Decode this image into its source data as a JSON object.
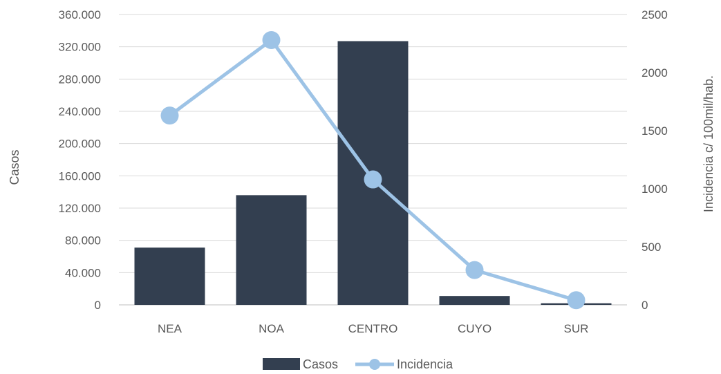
{
  "chart_data": {
    "type": "bar",
    "categories": [
      "NEA",
      "NOA",
      "CENTRO",
      "CUYO",
      "SUR"
    ],
    "series": [
      {
        "name": "Casos",
        "type": "bar",
        "axis": "left",
        "color": "#333f50",
        "values": [
          71000,
          136000,
          327000,
          11000,
          2000
        ]
      },
      {
        "name": "Incidencia",
        "type": "line",
        "axis": "right",
        "color": "#9dc3e6",
        "values": [
          1630,
          2280,
          1080,
          300,
          40
        ]
      }
    ],
    "y_left": {
      "label": "Casos",
      "ylim": [
        0,
        360000
      ],
      "ticks": [
        0,
        40000,
        80000,
        120000,
        160000,
        200000,
        240000,
        280000,
        320000,
        360000
      ],
      "tick_labels": [
        "0",
        "40.000",
        "80.000",
        "120.000",
        "160.000",
        "200.000",
        "240.000",
        "280.000",
        "320.000",
        "360.000"
      ]
    },
    "y_right": {
      "label": "Incidencia c/ 100mil/hab.",
      "ylim": [
        0,
        2500
      ],
      "ticks": [
        0,
        500,
        1000,
        1500,
        2000,
        2500
      ],
      "tick_labels": [
        "0",
        "500",
        "1000",
        "1500",
        "2000",
        "2500"
      ]
    },
    "grid": true,
    "legend": {
      "position": "bottom",
      "items": [
        "Casos",
        "Incidencia"
      ]
    }
  }
}
